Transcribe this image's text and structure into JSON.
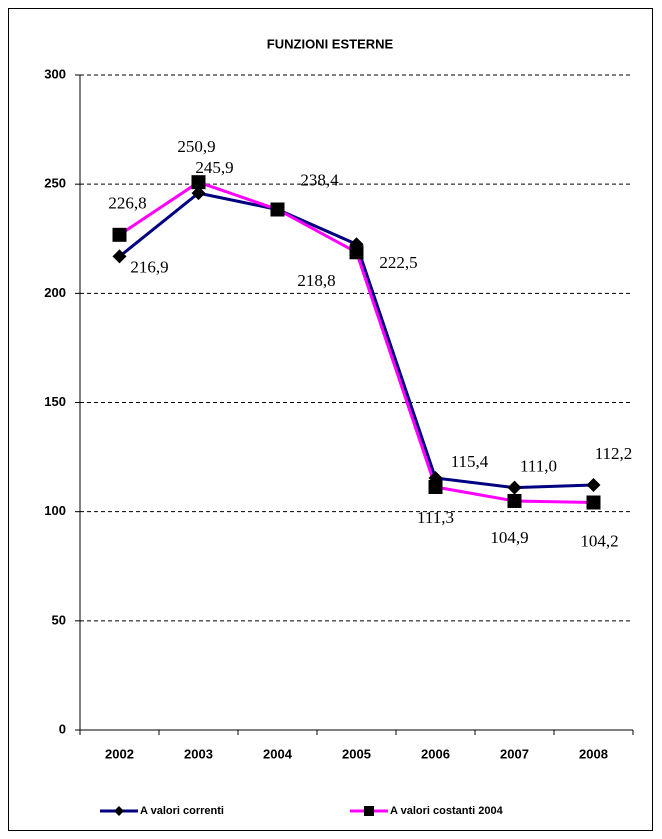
{
  "chart_data": {
    "type": "line",
    "title": "FUNZIONI ESTERNE",
    "categories": [
      "2002",
      "2003",
      "2004",
      "2005",
      "2006",
      "2007",
      "2008"
    ],
    "series": [
      {
        "name": "A valori correnti",
        "color": "#000080",
        "marker": "diamond",
        "values": [
          216.9,
          245.9,
          238.4,
          222.5,
          115.4,
          111.0,
          112.2
        ],
        "value_labels": [
          "216,9",
          "245,9",
          "238,4",
          "222,5",
          "115,4",
          "111,0",
          "112,2"
        ]
      },
      {
        "name": "A valori costanti 2004",
        "color": "#ff00ff",
        "marker": "square",
        "values": [
          226.8,
          250.9,
          238.4,
          218.8,
          111.3,
          104.9,
          104.2
        ],
        "value_labels": [
          "226,8",
          "250,9",
          null,
          "218,8",
          "111,3",
          "104,9",
          "104,2"
        ]
      }
    ],
    "ylim": [
      0,
      300
    ],
    "yticks": [
      0,
      50,
      100,
      150,
      200,
      250,
      300
    ],
    "grid": true,
    "legend": "bottom"
  }
}
